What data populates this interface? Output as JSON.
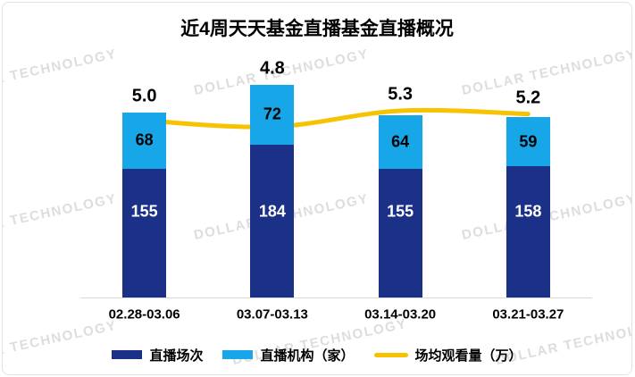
{
  "title": "近4周天天基金直播基金直播概况",
  "watermark": "DOLLAR TECHNOLOGY",
  "colors": {
    "sessions_bar": "#1B3188",
    "orgs_bar": "#17A7E9",
    "views_line": "#F7C200",
    "axis_line": "#D9D9D9",
    "card_border": "#E2E2E2"
  },
  "chart_data": {
    "type": "bar",
    "subtype": "stacked-bars-with-line-overlay",
    "title": "近4周天天基金直播基金直播概况",
    "categories": [
      "02.28-03.06",
      "03.07-03.13",
      "03.14-03.20",
      "03.21-03.27"
    ],
    "series": [
      {
        "name": "直播场次",
        "type": "bar",
        "stack": "total",
        "values": [
          155,
          184,
          155,
          158
        ],
        "color": "#1B3188",
        "label_color": "#FFFFFF"
      },
      {
        "name": "直播机构（家）",
        "type": "bar",
        "stack": "total",
        "values": [
          68,
          72,
          64,
          59
        ],
        "color": "#17A7E9",
        "label_color": "#000000"
      },
      {
        "name": "场均观看量（万）",
        "type": "line",
        "values": [
          5.0,
          4.8,
          5.3,
          5.2
        ],
        "color": "#F7C200",
        "label_color": "#000000"
      }
    ],
    "stacked": true,
    "data_labels": true,
    "grid": false,
    "xlabel": "",
    "ylabel": "",
    "legend_position": "bottom"
  }
}
